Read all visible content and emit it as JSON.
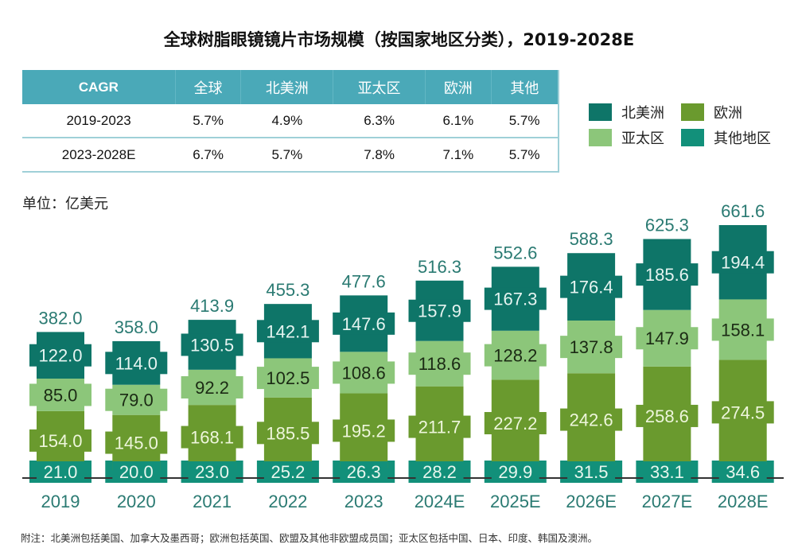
{
  "title": "全球树脂眼镜镜片市场规模（按国家地区分类），2019-2028E",
  "cagr_table": {
    "headers": [
      "CAGR",
      "全球",
      "北美洲",
      "亚太区",
      "欧洲",
      "其他"
    ],
    "rows": [
      [
        "2019-2023",
        "5.7%",
        "4.9%",
        "6.3%",
        "6.1%",
        "5.7%"
      ],
      [
        "2023-2028E",
        "6.7%",
        "5.7%",
        "7.8%",
        "7.1%",
        "5.7%"
      ]
    ],
    "header_color": "#4aa9b8"
  },
  "legend": [
    {
      "name": "北美洲",
      "color": "#0e7568"
    },
    {
      "name": "欧洲",
      "color": "#6a9a2e"
    },
    {
      "name": "亚太区",
      "color": "#8cc67a"
    },
    {
      "name": "其他地区",
      "color": "#12907a"
    }
  ],
  "unit_label": "单位：亿美元",
  "footnote": "附注：北美洲包括美国、加拿大及墨西哥；欧洲包括英国、欧盟及其他非欧盟成员国；亚太区包括中国、日本、印度、韩国及澳洲。",
  "chart_data": {
    "type": "bar",
    "stacked": true,
    "title": "全球树脂眼镜镜片市场规模（按国家地区分类），2019-2028E",
    "xlabel": "",
    "ylabel": "亿美元",
    "categories": [
      "2019",
      "2020",
      "2021",
      "2022",
      "2023",
      "2024E",
      "2025E",
      "2026E",
      "2027E",
      "2028E"
    ],
    "series": [
      {
        "name": "其他地区",
        "color": "#12907a",
        "label_color": "#e8f6ee",
        "values": [
          21.0,
          20.0,
          23.0,
          25.2,
          26.3,
          28.2,
          29.9,
          31.5,
          33.1,
          34.6
        ]
      },
      {
        "name": "欧洲",
        "color": "#6a9a2e",
        "label_color": "#eef6dc",
        "values": [
          154.0,
          145.0,
          168.1,
          185.5,
          195.2,
          211.7,
          227.2,
          242.6,
          258.6,
          274.5
        ]
      },
      {
        "name": "亚太区",
        "color": "#8cc67a",
        "label_color": "#1b2a14",
        "values": [
          85.0,
          79.0,
          92.2,
          102.5,
          108.6,
          118.6,
          128.2,
          137.8,
          147.9,
          158.1
        ]
      },
      {
        "name": "北美洲",
        "color": "#0e7568",
        "label_color": "#e6f4f1",
        "values": [
          122.0,
          114.0,
          130.5,
          142.1,
          147.6,
          157.9,
          167.3,
          176.4,
          185.6,
          194.4
        ]
      }
    ],
    "totals": [
      382.0,
      358.0,
      413.9,
      455.3,
      477.6,
      516.3,
      552.6,
      588.3,
      625.3,
      661.6
    ],
    "total_label_color": "#2a7a72",
    "axis_label_color": "#2a7a72",
    "ylim": [
      0,
      661.6
    ],
    "grid": false,
    "legend_position": "top-right"
  }
}
